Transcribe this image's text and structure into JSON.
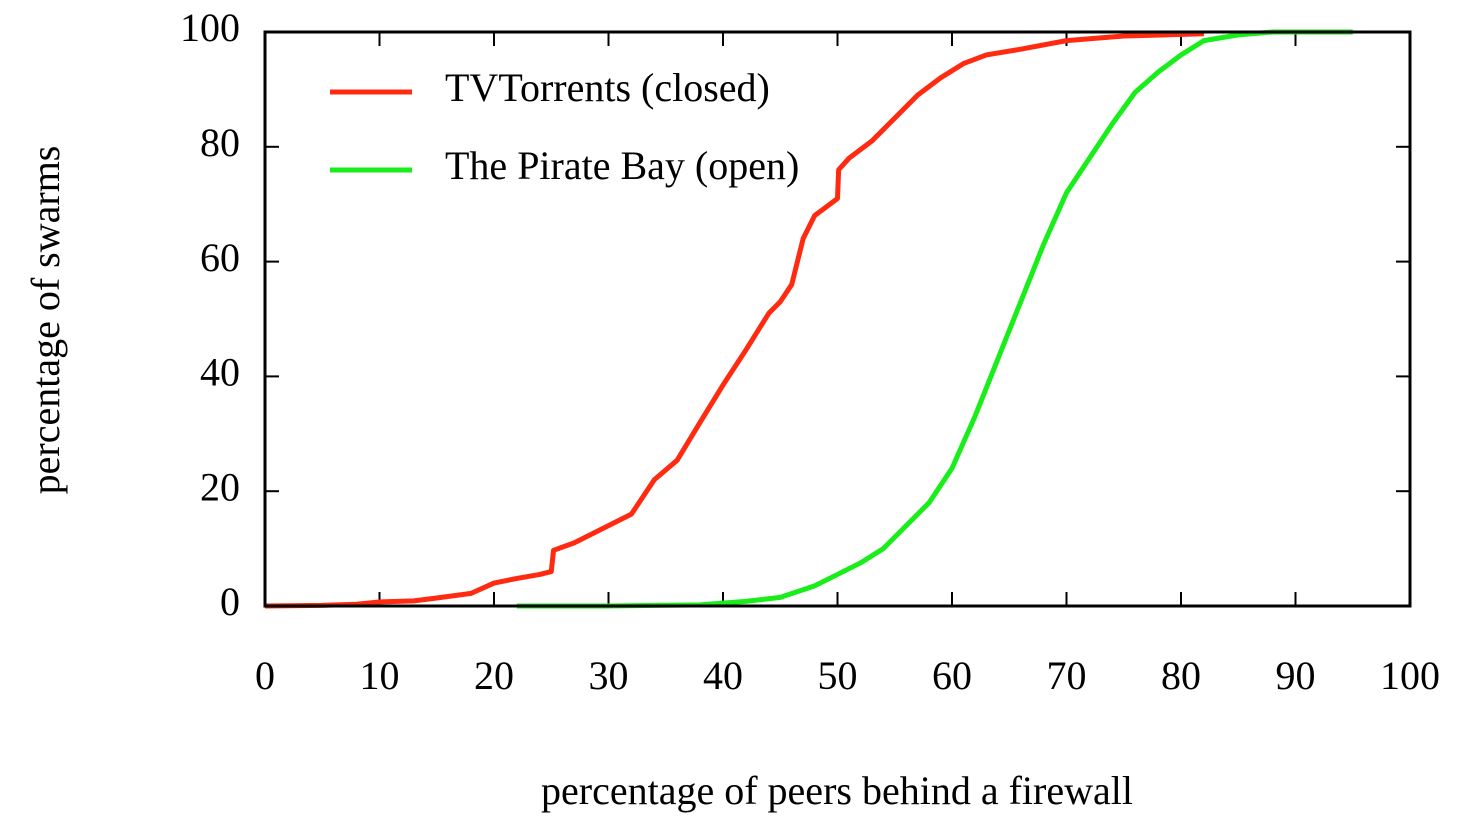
{
  "chart_data": {
    "type": "line",
    "xlabel": "percentage of peers behind a firewall",
    "ylabel": "percentage of swarms",
    "xlim": [
      0,
      100
    ],
    "xticks": [
      0,
      10,
      20,
      30,
      40,
      50,
      60,
      70,
      80,
      90,
      100
    ],
    "ylim": [
      0,
      100
    ],
    "yticks": [
      0,
      20,
      40,
      60,
      80,
      100
    ],
    "legend": "upper left",
    "grid": false,
    "series": [
      {
        "name": "TVTorrents (closed)",
        "color": "#ff2a10",
        "x": [
          0,
          5,
          8,
          10,
          13,
          15,
          18,
          20,
          22,
          24,
          25,
          25.2,
          27,
          28,
          30,
          32,
          34,
          36,
          38,
          40,
          42,
          44,
          45,
          46,
          47,
          48,
          49,
          50,
          50.1,
          51,
          53,
          55,
          57,
          59,
          61,
          63,
          66,
          70,
          75,
          82
        ],
        "values": [
          0,
          0.1,
          0.3,
          0.7,
          0.9,
          1.4,
          2.2,
          4,
          4.8,
          5.5,
          6,
          9.7,
          11,
          12,
          14,
          16,
          22,
          25.4,
          32,
          38.5,
          44.6,
          51,
          53,
          56,
          64,
          68,
          69.5,
          71,
          76,
          78,
          81,
          85,
          89,
          92,
          94.5,
          96,
          97,
          98.5,
          99.3,
          99.7
        ]
      },
      {
        "name": "The Pirate Bay (open)",
        "color": "#1aee1a",
        "x": [
          22,
          30,
          38,
          42,
          45,
          48,
          50,
          52,
          54,
          56,
          58,
          60,
          62,
          64,
          66,
          68,
          70,
          72,
          74,
          76,
          78,
          80,
          82,
          85,
          88,
          95
        ],
        "values": [
          0,
          0,
          0.2,
          0.8,
          1.5,
          3.5,
          5.5,
          7.5,
          10,
          14,
          18,
          24,
          33,
          43,
          53,
          63,
          72,
          78,
          84,
          89.5,
          93,
          96,
          98.5,
          99.5,
          100,
          100
        ]
      }
    ]
  }
}
